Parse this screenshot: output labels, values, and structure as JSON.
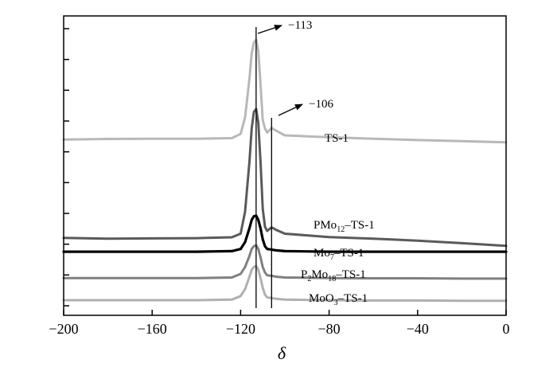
{
  "chart_data": {
    "type": "line",
    "title": "",
    "xlabel": "δ",
    "ylabel": "",
    "xlim": [
      -200,
      0
    ],
    "ylim": [
      0,
      100
    ],
    "x_ticks": [
      -200,
      -160,
      -120,
      -80,
      -40,
      0
    ],
    "x_tick_labels": [
      "−200",
      "−160",
      "−120",
      "−80",
      "−40",
      "0"
    ],
    "y_tick_count": 10,
    "grid": false,
    "legend": "none",
    "series": [
      {
        "key": "ts1",
        "label": "TS-1",
        "color": "#b8b8b8",
        "points": [
          [
            -200,
            60.0
          ],
          [
            -180,
            60.2
          ],
          [
            -160,
            60.3
          ],
          [
            -140,
            60.3
          ],
          [
            -124,
            60.5
          ],
          [
            -120,
            62.0
          ],
          [
            -118,
            68.0
          ],
          [
            -116,
            82.0
          ],
          [
            -115,
            91.0
          ],
          [
            -114,
            95.0
          ],
          [
            -113,
            96.0
          ],
          [
            -112,
            92.0
          ],
          [
            -111,
            80.0
          ],
          [
            -110,
            67.0
          ],
          [
            -109,
            64.0
          ],
          [
            -108,
            62.5
          ],
          [
            -106,
            64.2
          ],
          [
            -104,
            63.2
          ],
          [
            -100,
            61.5
          ],
          [
            -80,
            60.8
          ],
          [
            -60,
            60.3
          ],
          [
            -40,
            59.8
          ],
          [
            -20,
            59.4
          ],
          [
            0,
            59.0
          ]
        ]
      },
      {
        "key": "pmo12",
        "label_pre": "PMo",
        "label_sub": "12",
        "label_post": "–TS-1",
        "color": "#5a5a5a",
        "points": [
          [
            -200,
            24.5
          ],
          [
            -180,
            24.2
          ],
          [
            -160,
            24.3
          ],
          [
            -140,
            24.4
          ],
          [
            -124,
            24.7
          ],
          [
            -120,
            26.0
          ],
          [
            -118,
            34.0
          ],
          [
            -116,
            52.0
          ],
          [
            -115,
            64.0
          ],
          [
            -114,
            70.0
          ],
          [
            -113,
            71.0
          ],
          [
            -112,
            66.0
          ],
          [
            -111,
            52.0
          ],
          [
            -110,
            35.0
          ],
          [
            -109,
            28.5
          ],
          [
            -108,
            27.0
          ],
          [
            -106,
            28.3
          ],
          [
            -104,
            27.4
          ],
          [
            -100,
            26.0
          ],
          [
            -80,
            24.8
          ],
          [
            -60,
            24.2
          ],
          [
            -40,
            23.5
          ],
          [
            -20,
            22.6
          ],
          [
            0,
            21.6
          ]
        ]
      },
      {
        "key": "mo7",
        "label_pre": "Mo",
        "label_sub": "7",
        "label_post": "–TS-1",
        "color": "#000000",
        "bold": true,
        "points": [
          [
            -200,
            19.5
          ],
          [
            -180,
            19.5
          ],
          [
            -160,
            19.5
          ],
          [
            -140,
            19.5
          ],
          [
            -124,
            19.7
          ],
          [
            -120,
            20.5
          ],
          [
            -118,
            23.0
          ],
          [
            -116,
            28.0
          ],
          [
            -115,
            31.0
          ],
          [
            -114,
            32.3
          ],
          [
            -113,
            32.5
          ],
          [
            -112,
            31.0
          ],
          [
            -111,
            28.0
          ],
          [
            -110,
            24.0
          ],
          [
            -109,
            21.5
          ],
          [
            -108,
            20.5
          ],
          [
            -106,
            20.3
          ],
          [
            -104,
            20.0
          ],
          [
            -100,
            19.7
          ],
          [
            -80,
            19.5
          ],
          [
            -60,
            19.5
          ],
          [
            -40,
            19.5
          ],
          [
            -20,
            19.5
          ],
          [
            0,
            19.5
          ]
        ]
      },
      {
        "key": "p2mo18",
        "label_pre": "P",
        "label_sub": "2",
        "label_mid": "Mo",
        "label_sub2": "18",
        "label_post": "–TS-1",
        "color": "#808080",
        "points": [
          [
            -200,
            10.0
          ],
          [
            -180,
            10.0
          ],
          [
            -160,
            10.0
          ],
          [
            -140,
            10.0
          ],
          [
            -124,
            10.2
          ],
          [
            -120,
            11.5
          ],
          [
            -118,
            14.0
          ],
          [
            -116,
            18.0
          ],
          [
            -115,
            20.5
          ],
          [
            -114,
            21.5
          ],
          [
            -113,
            21.8
          ],
          [
            -112,
            20.5
          ],
          [
            -111,
            17.5
          ],
          [
            -110,
            14.0
          ],
          [
            -109,
            12.0
          ],
          [
            -108,
            11.0
          ],
          [
            -106,
            10.8
          ],
          [
            -104,
            10.5
          ],
          [
            -100,
            10.2
          ],
          [
            -80,
            10.0
          ],
          [
            -60,
            9.9
          ],
          [
            -40,
            9.9
          ],
          [
            -20,
            9.8
          ],
          [
            0,
            9.8
          ]
        ]
      },
      {
        "key": "moo3",
        "label_pre": "MoO",
        "label_sub": "3",
        "label_post": "–TS-1",
        "color": "#b0b0b0",
        "points": [
          [
            -200,
            2.0
          ],
          [
            -180,
            2.0
          ],
          [
            -160,
            2.0
          ],
          [
            -140,
            2.0
          ],
          [
            -124,
            2.2
          ],
          [
            -120,
            3.5
          ],
          [
            -118,
            6.0
          ],
          [
            -116,
            10.5
          ],
          [
            -115,
            13.0
          ],
          [
            -114,
            14.0
          ],
          [
            -113,
            14.3
          ],
          [
            -112,
            13.0
          ],
          [
            -111,
            10.0
          ],
          [
            -110,
            6.5
          ],
          [
            -109,
            4.0
          ],
          [
            -108,
            3.0
          ],
          [
            -106,
            2.8
          ],
          [
            -104,
            2.5
          ],
          [
            -100,
            2.2
          ],
          [
            -80,
            2.0
          ],
          [
            -60,
            1.9
          ],
          [
            -40,
            1.9
          ],
          [
            -20,
            1.8
          ],
          [
            0,
            1.8
          ]
        ]
      }
    ],
    "reference_lines": [
      {
        "x": -113,
        "label": "−113"
      },
      {
        "x": -106,
        "label": "−106"
      }
    ]
  }
}
